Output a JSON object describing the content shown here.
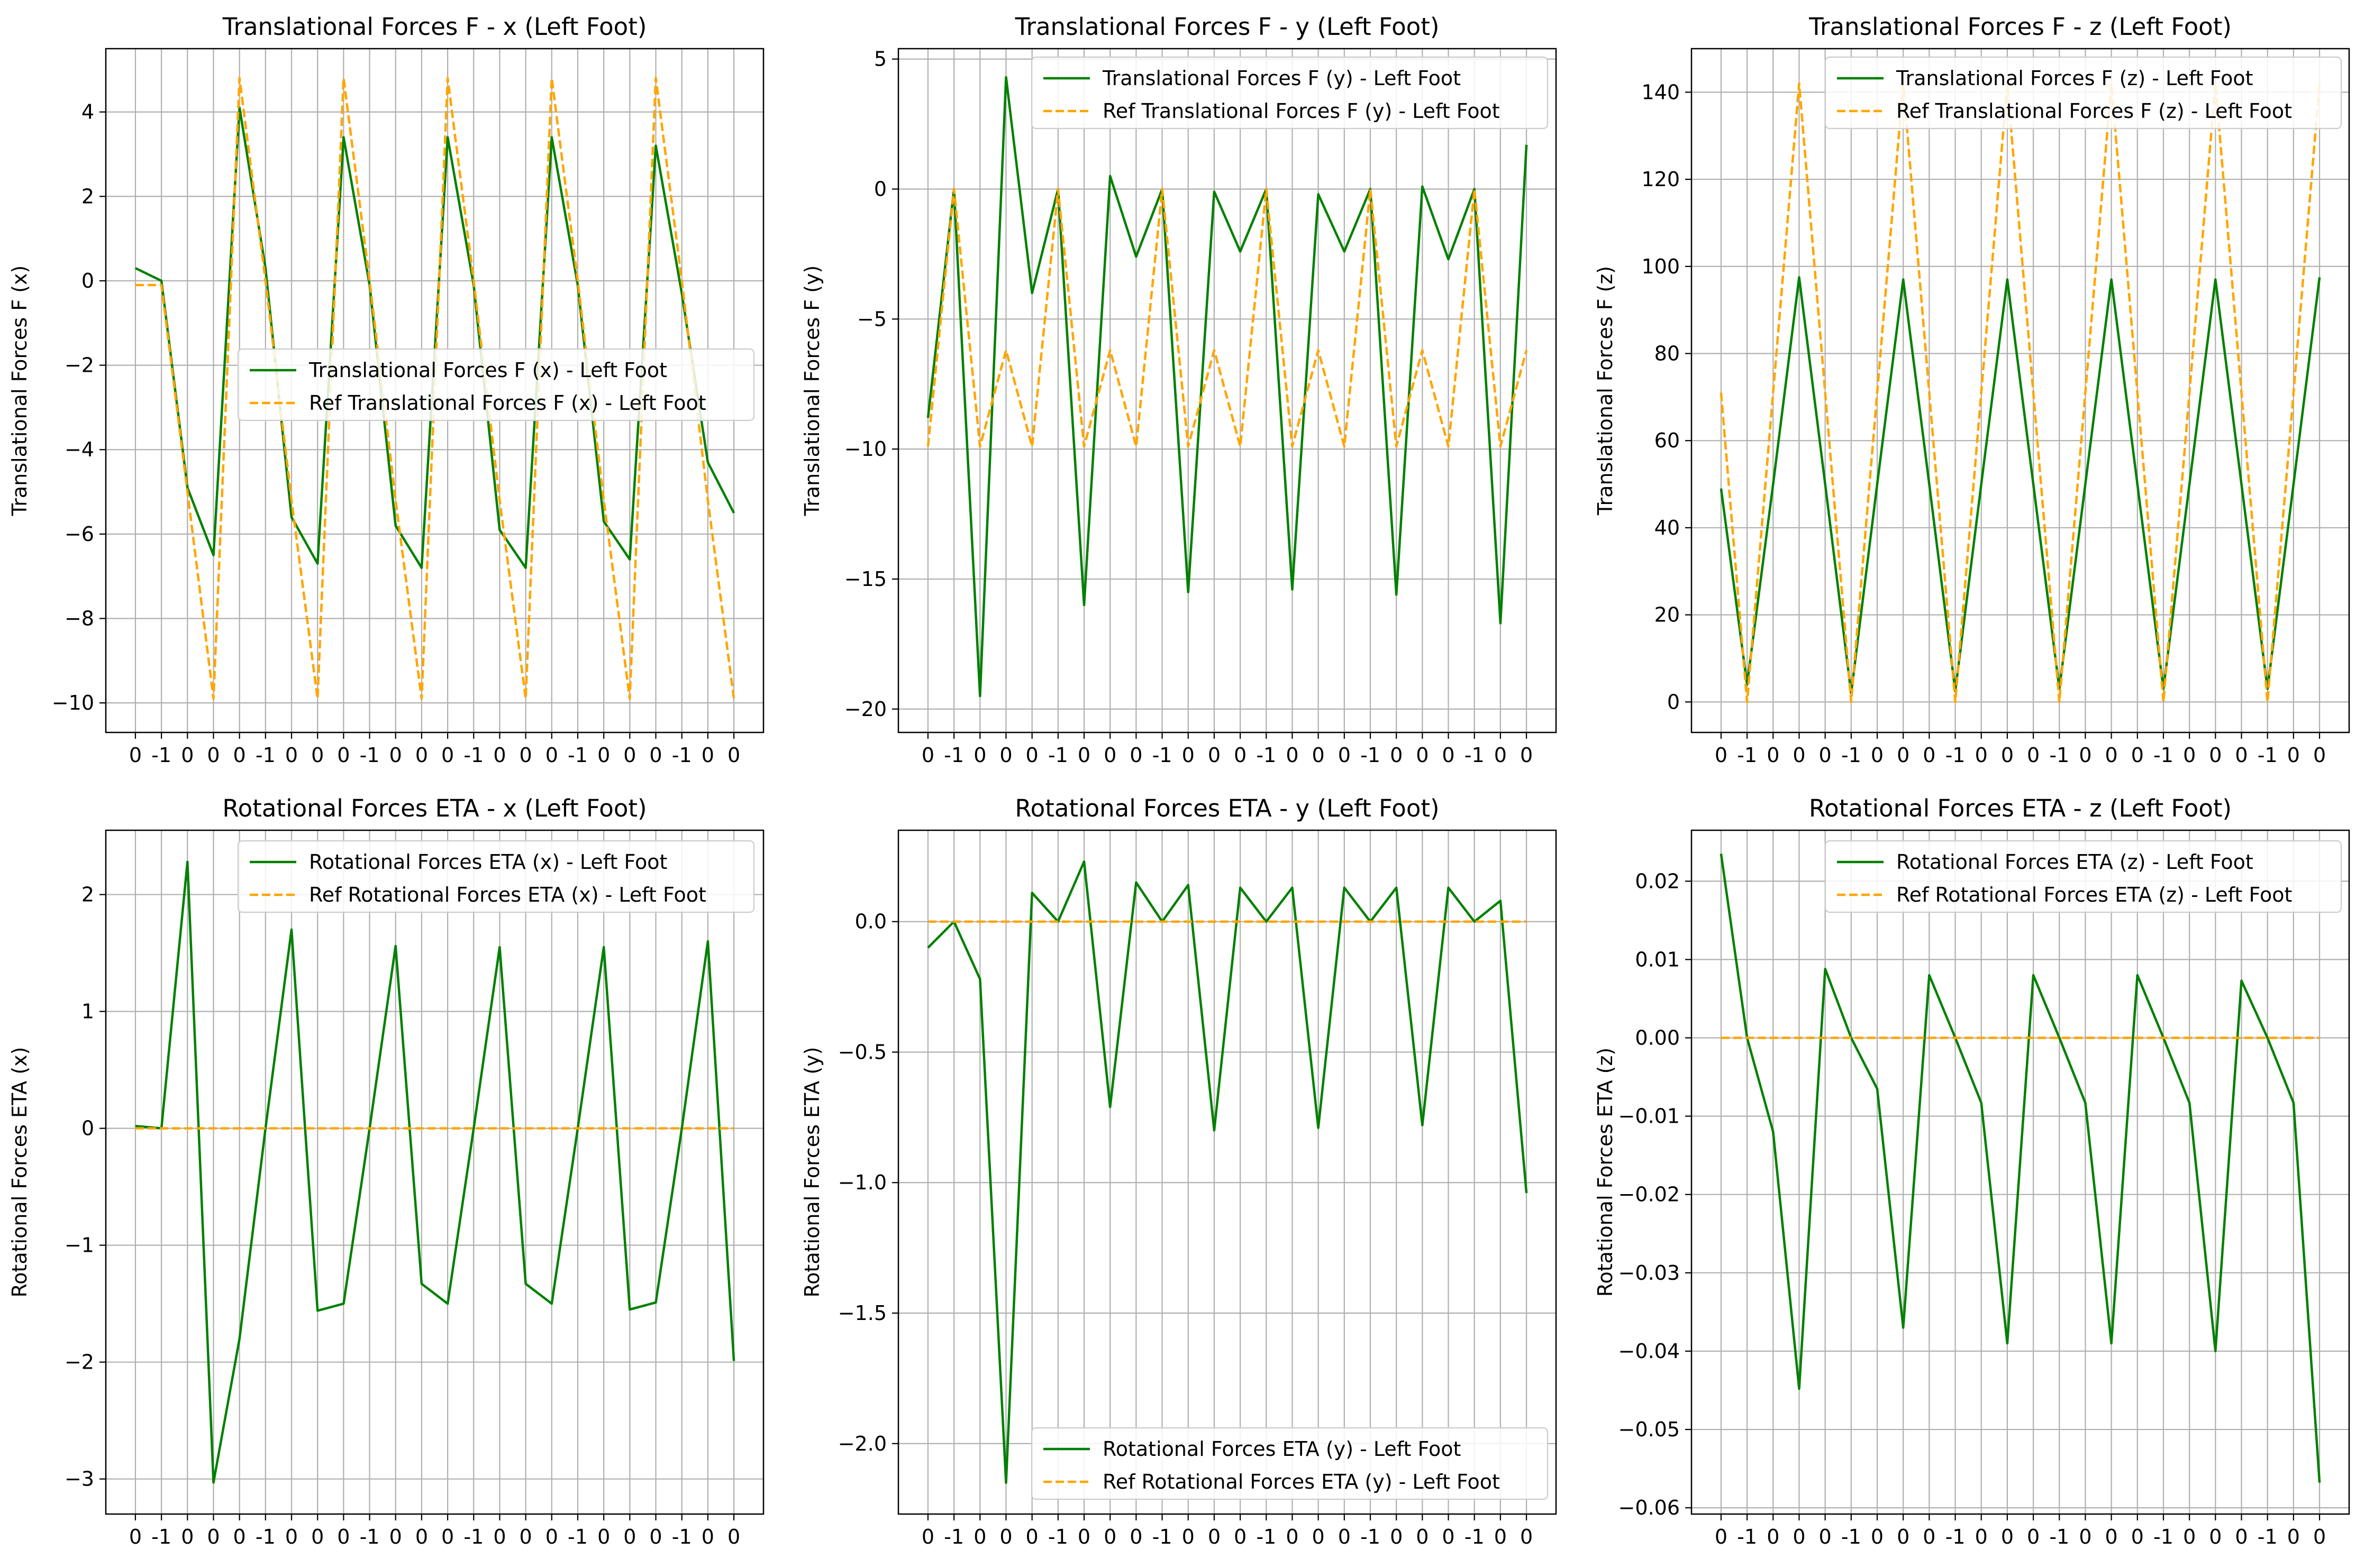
{
  "figure": {
    "background": "#ffffff",
    "grid_color": "#b0b0b0"
  },
  "chart_data": [
    {
      "type": "line",
      "title": "Translational Forces F - x (Left Foot)",
      "xlabel": "",
      "ylabel": "Translational Forces F (x)",
      "x_tick_labels": [
        "0",
        "-1",
        "0",
        "0",
        "0",
        "-1",
        "0",
        "0",
        "0",
        "-1",
        "0",
        "0",
        "0",
        "-1",
        "0",
        "0",
        "0",
        "-1",
        "0",
        "0",
        "0",
        "-1",
        "0",
        "0"
      ],
      "yticks": [
        "4",
        "2",
        "0",
        "−2",
        "−4",
        "−6",
        "−8",
        "−10"
      ],
      "ytick_values": [
        4,
        2,
        0,
        -2,
        -4,
        -6,
        -8,
        -10
      ],
      "ylim": [
        -10.7,
        5.5
      ],
      "grid": true,
      "legend_position": "center-right",
      "series": [
        {
          "name": "Translational Forces F (x) - Left Foot",
          "color": "#008000",
          "dash": "solid",
          "values": [
            0.3,
            0,
            -4.9,
            -6.5,
            4.1,
            0.3,
            -5.6,
            -6.7,
            3.4,
            -0.1,
            -5.8,
            -6.8,
            3.4,
            -0.1,
            -5.9,
            -6.8,
            3.4,
            -0.1,
            -5.7,
            -6.6,
            3.2,
            -0.3,
            -4.3,
            -5.5
          ]
        },
        {
          "name": "Ref Translational Forces F (x) - Left Foot",
          "color": "#ffa500",
          "dash": "dashed",
          "values": [
            -0.1,
            -0.1,
            -5,
            -9.9,
            4.8,
            0,
            -5.2,
            -9.9,
            4.8,
            0,
            -5.2,
            -9.9,
            4.8,
            0,
            -5.2,
            -9.9,
            4.8,
            0,
            -5.2,
            -9.9,
            4.8,
            0,
            -5.2,
            -9.9
          ]
        }
      ]
    },
    {
      "type": "line",
      "title": "Translational Forces F - y (Left Foot)",
      "xlabel": "",
      "ylabel": "Translational Forces F (y)",
      "x_tick_labels": [
        "0",
        "-1",
        "0",
        "0",
        "0",
        "-1",
        "0",
        "0",
        "0",
        "-1",
        "0",
        "0",
        "0",
        "-1",
        "0",
        "0",
        "0",
        "-1",
        "0",
        "0",
        "0",
        "-1",
        "0",
        "0"
      ],
      "yticks": [
        "5",
        "0",
        "−5",
        "−10",
        "−15",
        "−20"
      ],
      "ytick_values": [
        5,
        0,
        -5,
        -10,
        -15,
        -20
      ],
      "ylim": [
        -20.9,
        5.4
      ],
      "grid": true,
      "legend_position": "top-right",
      "series": [
        {
          "name": "Translational Forces F (y) - Left Foot",
          "color": "#008000",
          "dash": "solid",
          "values": [
            -8.8,
            0,
            -19.5,
            4.3,
            -4,
            0,
            -16,
            0.5,
            -2.6,
            0,
            -15.5,
            -0.1,
            -2.4,
            0,
            -15.4,
            -0.2,
            -2.4,
            0,
            -15.6,
            0.1,
            -2.7,
            0,
            -16.7,
            1.7
          ]
        },
        {
          "name": "Ref Translational Forces F (y) - Left Foot",
          "color": "#ffa500",
          "dash": "dashed",
          "values": [
            -9.9,
            0,
            -9.9,
            -6.2,
            -9.9,
            0,
            -9.9,
            -6.2,
            -9.9,
            0,
            -9.9,
            -6.2,
            -9.9,
            0,
            -9.9,
            -6.2,
            -9.9,
            0,
            -9.9,
            -6.2,
            -9.9,
            0,
            -9.9,
            -6.2
          ]
        }
      ]
    },
    {
      "type": "line",
      "title": "Translational Forces F - z (Left Foot)",
      "xlabel": "",
      "ylabel": "Translational Forces F (z)",
      "x_tick_labels": [
        "0",
        "-1",
        "0",
        "0",
        "0",
        "-1",
        "0",
        "0",
        "0",
        "-1",
        "0",
        "0",
        "0",
        "-1",
        "0",
        "0",
        "0",
        "-1",
        "0",
        "0",
        "0",
        "-1",
        "0",
        "0"
      ],
      "yticks": [
        "140",
        "120",
        "100",
        "80",
        "60",
        "40",
        "20",
        "0"
      ],
      "ytick_values": [
        140,
        120,
        100,
        80,
        60,
        40,
        20,
        0
      ],
      "ylim": [
        -7,
        150
      ],
      "grid": true,
      "legend_position": "top-right",
      "series": [
        {
          "name": "Translational Forces F (z) - Left Foot",
          "color": "#008000",
          "dash": "solid",
          "values": [
            49,
            4,
            50,
            97.5,
            50,
            2,
            50,
            97,
            50,
            2.5,
            50,
            97,
            50,
            3,
            50,
            97,
            50,
            3,
            50,
            97,
            50,
            3,
            50,
            97.5
          ]
        },
        {
          "name": "Ref Translational Forces F (z) - Left Foot",
          "color": "#ffa500",
          "dash": "dashed",
          "values": [
            71,
            0,
            71,
            142,
            71,
            0,
            71,
            142,
            71,
            0,
            71,
            142,
            71,
            0,
            71,
            142,
            71,
            0,
            71,
            142,
            71,
            0,
            71,
            142
          ]
        }
      ]
    },
    {
      "type": "line",
      "title": "Rotational Forces ETA - x (Left Foot)",
      "xlabel": "",
      "ylabel": "Rotational Forces ETA (x)",
      "x_tick_labels": [
        "0",
        "-1",
        "0",
        "0",
        "0",
        "-1",
        "0",
        "0",
        "0",
        "-1",
        "0",
        "0",
        "0",
        "-1",
        "0",
        "0",
        "0",
        "-1",
        "0",
        "0",
        "0",
        "-1",
        "0",
        "0"
      ],
      "yticks": [
        "2",
        "1",
        "0",
        "−1",
        "−2",
        "−3"
      ],
      "ytick_values": [
        2,
        1,
        0,
        -1,
        -2,
        -3
      ],
      "ylim": [
        -3.3,
        2.55
      ],
      "grid": true,
      "legend_position": "top-right",
      "series": [
        {
          "name": "Rotational Forces ETA (x) - Left Foot",
          "color": "#008000",
          "dash": "solid",
          "values": [
            0.02,
            0,
            2.28,
            -3.03,
            -1.8,
            0,
            1.7,
            -1.56,
            -1.5,
            0,
            1.56,
            -1.33,
            -1.5,
            0,
            1.55,
            -1.33,
            -1.5,
            0,
            1.55,
            -1.55,
            -1.49,
            0,
            1.6,
            -1.99
          ]
        },
        {
          "name": "Ref Rotational Forces ETA (x) - Left Foot",
          "color": "#ffa500",
          "dash": "dashed",
          "values": [
            0,
            0,
            0,
            0,
            0,
            0,
            0,
            0,
            0,
            0,
            0,
            0,
            0,
            0,
            0,
            0,
            0,
            0,
            0,
            0,
            0,
            0,
            0,
            0
          ]
        }
      ]
    },
    {
      "type": "line",
      "title": "Rotational Forces ETA - y (Left Foot)",
      "xlabel": "",
      "ylabel": "Rotational Forces ETA (y)",
      "x_tick_labels": [
        "0",
        "-1",
        "0",
        "0",
        "0",
        "-1",
        "0",
        "0",
        "0",
        "-1",
        "0",
        "0",
        "0",
        "-1",
        "0",
        "0",
        "0",
        "-1",
        "0",
        "0",
        "0",
        "-1",
        "0",
        "0"
      ],
      "yticks": [
        "0.0",
        "−0.5",
        "−1.0",
        "−1.5",
        "−2.0"
      ],
      "ytick_values": [
        0,
        -0.5,
        -1,
        -1.5,
        -2
      ],
      "ylim": [
        -2.27,
        0.35
      ],
      "grid": true,
      "legend_position": "bottom-right",
      "series": [
        {
          "name": "Rotational Forces ETA (y) - Left Foot",
          "color": "#008000",
          "dash": "solid",
          "values": [
            -0.1,
            0,
            -0.22,
            -2.15,
            0.11,
            0,
            0.23,
            -0.71,
            0.15,
            0,
            0.14,
            -0.8,
            0.13,
            0,
            0.13,
            -0.79,
            0.13,
            0,
            0.13,
            -0.78,
            0.13,
            0,
            0.08,
            -1.04
          ]
        },
        {
          "name": "Ref Rotational Forces ETA (y) - Left Foot",
          "color": "#ffa500",
          "dash": "dashed",
          "values": [
            0,
            0,
            0,
            0,
            0,
            0,
            0,
            0,
            0,
            0,
            0,
            0,
            0,
            0,
            0,
            0,
            0,
            0,
            0,
            0,
            0,
            0,
            0,
            0
          ]
        }
      ]
    },
    {
      "type": "line",
      "title": "Rotational Forces ETA - z (Left Foot)",
      "xlabel": "",
      "ylabel": "Rotational Forces ETA (z)",
      "x_tick_labels": [
        "0",
        "-1",
        "0",
        "0",
        "0",
        "-1",
        "0",
        "0",
        "0",
        "-1",
        "0",
        "0",
        "0",
        "-1",
        "0",
        "0",
        "0",
        "-1",
        "0",
        "0",
        "0",
        "-1",
        "0",
        "0"
      ],
      "yticks": [
        "0.02",
        "0.01",
        "0.00",
        "−0.01",
        "−0.02",
        "−0.03",
        "−0.04",
        "−0.05",
        "−0.06"
      ],
      "ytick_values": [
        0.02,
        0.01,
        0,
        -0.01,
        -0.02,
        -0.03,
        -0.04,
        -0.05,
        -0.06
      ],
      "ylim": [
        -0.0608,
        0.0265
      ],
      "grid": true,
      "legend_position": "top-right",
      "series": [
        {
          "name": "Rotational Forces ETA (z) - Left Foot",
          "color": "#008000",
          "dash": "solid",
          "values": [
            0.0235,
            0,
            -0.012,
            -0.0448,
            0.0088,
            0,
            -0.0065,
            -0.037,
            0.008,
            0,
            -0.0083,
            -0.039,
            0.008,
            0,
            -0.0083,
            -0.039,
            0.008,
            0,
            -0.0083,
            -0.04,
            0.0073,
            0,
            -0.0083,
            -0.0568
          ]
        },
        {
          "name": "Ref Rotational Forces ETA (z) - Left Foot",
          "color": "#ffa500",
          "dash": "dashed",
          "values": [
            0,
            0,
            0,
            0,
            0,
            0,
            0,
            0,
            0,
            0,
            0,
            0,
            0,
            0,
            0,
            0,
            0,
            0,
            0,
            0,
            0,
            0,
            0,
            0
          ]
        }
      ]
    }
  ]
}
